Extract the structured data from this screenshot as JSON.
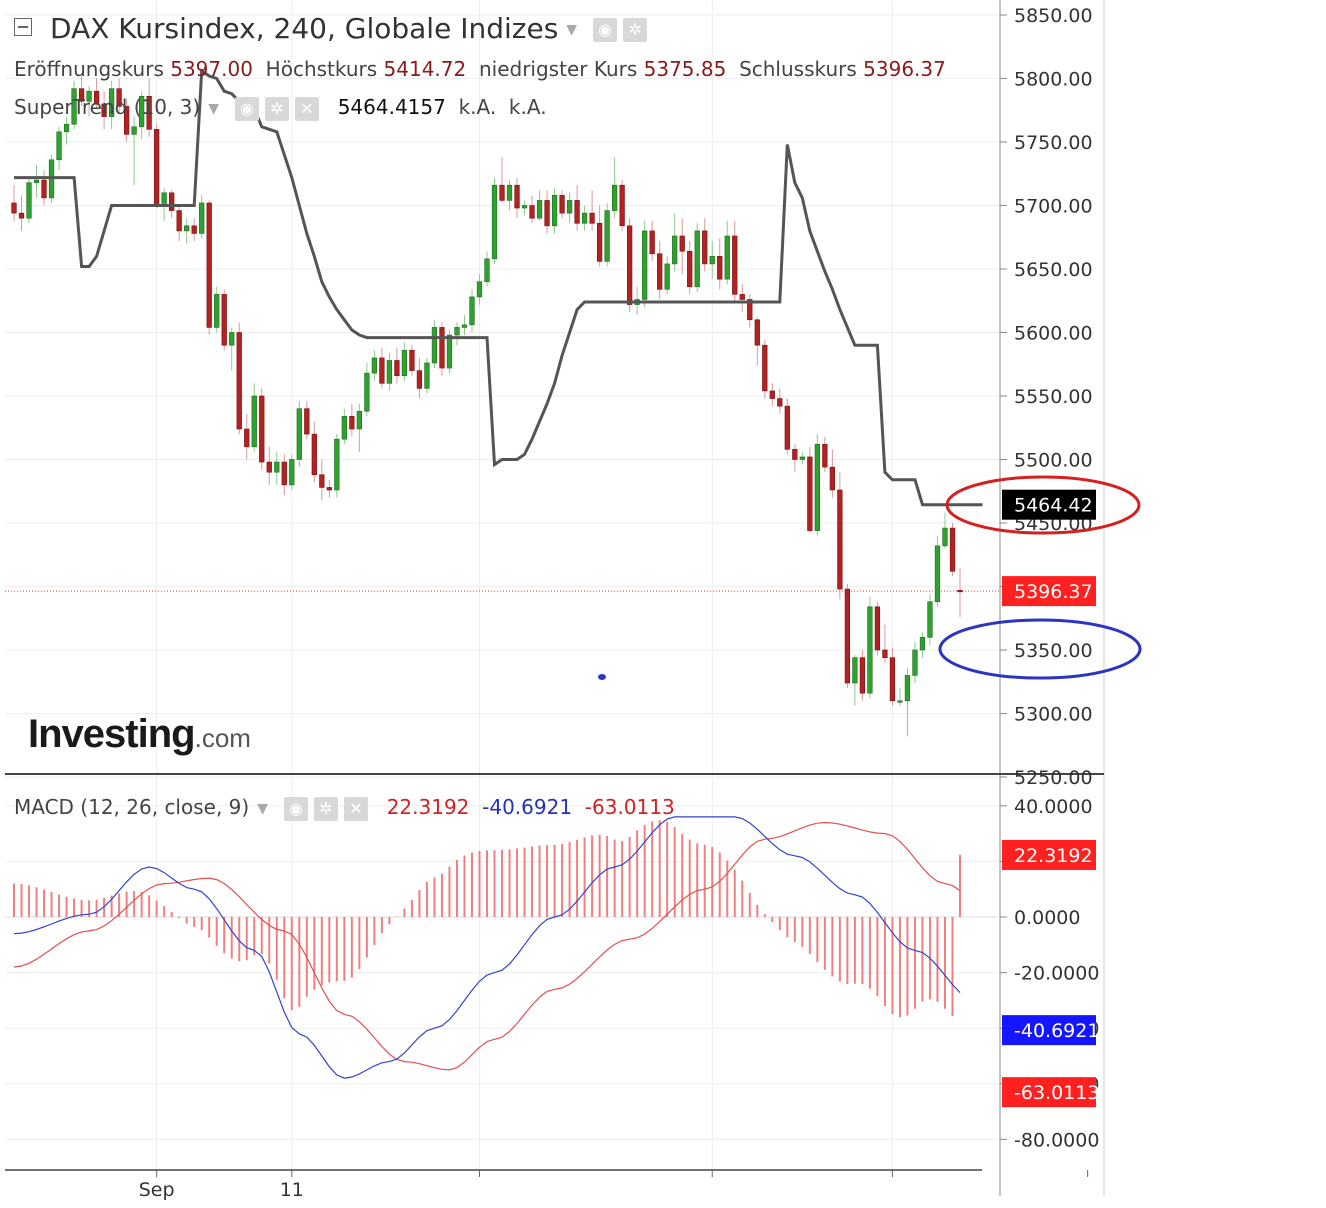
{
  "header": {
    "title": "DAX Kursindex, 240, Globale Indizes",
    "ohlc": [
      {
        "label": "Eröffnungskurs",
        "value": "5397.00"
      },
      {
        "label": "Höchstkurs",
        "value": "5414.72"
      },
      {
        "label": "niedrigster Kurs",
        "value": "5375.85"
      },
      {
        "label": "Schlusskurs",
        "value": "5396.37"
      }
    ],
    "supertrend_label": "SuperTrend (10, 3)",
    "supertrend_value": "5464.4157",
    "na1": "k.A.",
    "na2": "k.A.",
    "macd_label": "MACD (12, 26, close, 9)",
    "macd_values": [
      "22.3192",
      "-40.6921",
      "-63.0113"
    ]
  },
  "logo": {
    "main": "Investing",
    "suffix": ".com"
  },
  "colors": {
    "up": "#2ea12e",
    "down": "#b22222",
    "supertrend": "#555555",
    "macd": "#3344cc",
    "signal": "#e45050",
    "hist": "#f08080",
    "price_line": "#ff3333",
    "annot_red": "#d42020",
    "annot_blue": "#2a35c0"
  },
  "chart_data": [
    {
      "type": "candlestick",
      "title": "DAX Kursindex, 240, Globale Indizes",
      "ylim": [
        5250,
        5860
      ],
      "yticks": [
        "5850.00",
        "5800.00",
        "5750.00",
        "5700.00",
        "5650.00",
        "5600.00",
        "5550.00",
        "5500.00",
        "5450.00",
        "5400.00",
        "5350.00",
        "5300.00",
        "5250.00"
      ],
      "xticks": [
        {
          "label": "Sep",
          "i": 19
        },
        {
          "label": "11",
          "i": 37
        }
      ],
      "candles": [
        [
          5702,
          5716,
          5688,
          5694
        ],
        [
          5694,
          5708,
          5680,
          5690
        ],
        [
          5690,
          5722,
          5686,
          5718
        ],
        [
          5718,
          5732,
          5706,
          5720
        ],
        [
          5720,
          5728,
          5700,
          5706
        ],
        [
          5706,
          5740,
          5702,
          5736
        ],
        [
          5736,
          5762,
          5728,
          5758
        ],
        [
          5758,
          5770,
          5748,
          5764
        ],
        [
          5764,
          5798,
          5760,
          5792
        ],
        [
          5792,
          5802,
          5778,
          5782
        ],
        [
          5782,
          5794,
          5770,
          5790
        ],
        [
          5790,
          5800,
          5776,
          5780
        ],
        [
          5780,
          5790,
          5760,
          5770
        ],
        [
          5770,
          5798,
          5760,
          5792
        ],
        [
          5792,
          5800,
          5772,
          5778
        ],
        [
          5778,
          5784,
          5750,
          5756
        ],
        [
          5756,
          5770,
          5716,
          5762
        ],
        [
          5762,
          5790,
          5752,
          5786
        ],
        [
          5786,
          5800,
          5754,
          5760
        ],
        [
          5760,
          5764,
          5698,
          5700
        ],
        [
          5700,
          5714,
          5688,
          5710
        ],
        [
          5710,
          5712,
          5690,
          5696
        ],
        [
          5696,
          5700,
          5672,
          5680
        ],
        [
          5680,
          5690,
          5670,
          5684
        ],
        [
          5684,
          5690,
          5672,
          5678
        ],
        [
          5678,
          5708,
          5674,
          5702
        ],
        [
          5702,
          5704,
          5598,
          5604
        ],
        [
          5604,
          5636,
          5600,
          5630
        ],
        [
          5630,
          5634,
          5586,
          5590
        ],
        [
          5590,
          5604,
          5570,
          5600
        ],
        [
          5600,
          5608,
          5520,
          5524
        ],
        [
          5524,
          5536,
          5500,
          5510
        ],
        [
          5510,
          5560,
          5506,
          5550
        ],
        [
          5550,
          5556,
          5492,
          5498
        ],
        [
          5498,
          5510,
          5480,
          5490
        ],
        [
          5490,
          5506,
          5480,
          5498
        ],
        [
          5498,
          5504,
          5472,
          5480
        ],
        [
          5480,
          5504,
          5476,
          5500
        ],
        [
          5500,
          5546,
          5494,
          5540
        ],
        [
          5540,
          5546,
          5516,
          5520
        ],
        [
          5520,
          5530,
          5482,
          5488
        ],
        [
          5488,
          5500,
          5468,
          5478
        ],
        [
          5478,
          5484,
          5470,
          5476
        ],
        [
          5476,
          5520,
          5470,
          5516
        ],
        [
          5516,
          5540,
          5512,
          5534
        ],
        [
          5534,
          5544,
          5518,
          5524
        ],
        [
          5524,
          5544,
          5506,
          5538
        ],
        [
          5538,
          5576,
          5534,
          5568
        ],
        [
          5568,
          5586,
          5562,
          5580
        ],
        [
          5580,
          5588,
          5556,
          5560
        ],
        [
          5560,
          5584,
          5554,
          5578
        ],
        [
          5578,
          5588,
          5560,
          5566
        ],
        [
          5566,
          5592,
          5562,
          5586
        ],
        [
          5586,
          5590,
          5566,
          5570
        ],
        [
          5570,
          5580,
          5548,
          5556
        ],
        [
          5556,
          5580,
          5552,
          5576
        ],
        [
          5576,
          5610,
          5572,
          5604
        ],
        [
          5604,
          5608,
          5566,
          5572
        ],
        [
          5572,
          5602,
          5568,
          5598
        ],
        [
          5598,
          5608,
          5590,
          5604
        ],
        [
          5604,
          5614,
          5598,
          5606
        ],
        [
          5606,
          5634,
          5600,
          5628
        ],
        [
          5628,
          5646,
          5622,
          5640
        ],
        [
          5640,
          5664,
          5636,
          5658
        ],
        [
          5658,
          5722,
          5654,
          5716
        ],
        [
          5716,
          5738,
          5702,
          5704
        ],
        [
          5704,
          5720,
          5696,
          5716
        ],
        [
          5716,
          5722,
          5690,
          5698
        ],
        [
          5698,
          5704,
          5692,
          5700
        ],
        [
          5700,
          5708,
          5686,
          5690
        ],
        [
          5690,
          5712,
          5688,
          5704
        ],
        [
          5704,
          5712,
          5678,
          5684
        ],
        [
          5684,
          5714,
          5678,
          5708
        ],
        [
          5708,
          5712,
          5690,
          5694
        ],
        [
          5694,
          5710,
          5686,
          5704
        ],
        [
          5704,
          5716,
          5680,
          5686
        ],
        [
          5686,
          5700,
          5680,
          5694
        ],
        [
          5694,
          5712,
          5680,
          5686
        ],
        [
          5686,
          5700,
          5652,
          5656
        ],
        [
          5656,
          5702,
          5652,
          5696
        ],
        [
          5696,
          5738,
          5690,
          5716
        ],
        [
          5716,
          5720,
          5680,
          5684
        ],
        [
          5684,
          5690,
          5616,
          5622
        ],
        [
          5622,
          5636,
          5614,
          5626
        ],
        [
          5626,
          5688,
          5620,
          5680
        ],
        [
          5680,
          5688,
          5656,
          5662
        ],
        [
          5662,
          5672,
          5626,
          5634
        ],
        [
          5634,
          5660,
          5630,
          5654
        ],
        [
          5654,
          5694,
          5648,
          5676
        ],
        [
          5676,
          5690,
          5646,
          5664
        ],
        [
          5664,
          5672,
          5630,
          5636
        ],
        [
          5636,
          5686,
          5632,
          5680
        ],
        [
          5680,
          5690,
          5648,
          5654
        ],
        [
          5654,
          5672,
          5642,
          5660
        ],
        [
          5660,
          5674,
          5634,
          5642
        ],
        [
          5642,
          5688,
          5638,
          5676
        ],
        [
          5676,
          5688,
          5624,
          5630
        ],
        [
          5630,
          5638,
          5616,
          5626
        ],
        [
          5626,
          5630,
          5604,
          5610
        ],
        [
          5610,
          5612,
          5574,
          5590
        ],
        [
          5590,
          5594,
          5548,
          5554
        ],
        [
          5554,
          5560,
          5542,
          5548
        ],
        [
          5548,
          5556,
          5536,
          5542
        ],
        [
          5542,
          5548,
          5504,
          5508
        ],
        [
          5508,
          5512,
          5490,
          5500
        ],
        [
          5500,
          5506,
          5496,
          5502
        ],
        [
          5502,
          5510,
          5442,
          5444
        ],
        [
          5444,
          5520,
          5440,
          5512
        ],
        [
          5512,
          5518,
          5490,
          5494
        ],
        [
          5494,
          5508,
          5470,
          5476
        ],
        [
          5476,
          5490,
          5390,
          5398
        ],
        [
          5398,
          5402,
          5320,
          5324
        ],
        [
          5324,
          5346,
          5306,
          5344
        ],
        [
          5344,
          5350,
          5310,
          5316
        ],
        [
          5316,
          5392,
          5312,
          5384
        ],
        [
          5384,
          5388,
          5346,
          5350
        ],
        [
          5350,
          5370,
          5340,
          5344
        ],
        [
          5344,
          5352,
          5306,
          5310
        ],
        [
          5310,
          5320,
          5306,
          5310
        ],
        [
          5310,
          5336,
          5282,
          5330
        ],
        [
          5330,
          5356,
          5324,
          5350
        ],
        [
          5350,
          5364,
          5344,
          5360
        ],
        [
          5360,
          5394,
          5354,
          5388
        ],
        [
          5388,
          5440,
          5384,
          5432
        ],
        [
          5432,
          5458,
          5430,
          5446
        ],
        [
          5446,
          5450,
          5408,
          5412
        ],
        [
          5397,
          5414.72,
          5375.85,
          5396.37
        ]
      ],
      "supertrend": [
        5722,
        5722,
        5722,
        5722,
        5722,
        5722,
        5722,
        5722,
        5722,
        5652,
        5652,
        5660,
        5680,
        5700,
        5700,
        5700,
        5700,
        5700,
        5700,
        5700,
        5700,
        5700,
        5700,
        5700,
        5700,
        5806,
        5802,
        5800,
        5790,
        5788,
        5782,
        5778,
        5776,
        5762,
        5760,
        5758,
        5740,
        5722,
        5700,
        5678,
        5660,
        5640,
        5628,
        5618,
        5610,
        5602,
        5598,
        5596,
        5596,
        5596,
        5596,
        5596,
        5596,
        5596,
        5596,
        5596,
        5596,
        5596,
        5596,
        5596,
        5596,
        5596,
        5596,
        5596,
        5496,
        5500,
        5500,
        5500,
        5504,
        5516,
        5530,
        5544,
        5560,
        5582,
        5600,
        5618,
        5624,
        5624,
        5624,
        5624,
        5624,
        5624,
        5624,
        5624,
        5624,
        5624,
        5624,
        5624,
        5624,
        5624,
        5624,
        5624,
        5624,
        5624,
        5624,
        5624,
        5624,
        5624,
        5624,
        5624,
        5624,
        5624,
        5624,
        5748,
        5718,
        5706,
        5680,
        5664,
        5648,
        5634,
        5618,
        5604,
        5590,
        5590,
        5590,
        5590,
        5490,
        5484,
        5484,
        5484,
        5484,
        5464.42,
        5464.42,
        5464.42,
        5464.42,
        5464.42,
        5464.42,
        5464.42,
        5464.42,
        5464.42
      ],
      "last_price": "5396.37",
      "supertrend_last": "5464.42"
    },
    {
      "type": "macd",
      "title": "MACD (12, 26, close, 9)",
      "ylim": [
        -88,
        44
      ],
      "yticks": [
        "40.0000",
        "20.0000",
        "0.0000",
        "-20.0000",
        "-40.0000",
        "-60.0000",
        "-80.0000"
      ],
      "anchors_macd": [
        [
          0,
          -6
        ],
        [
          10,
          1
        ],
        [
          18,
          18
        ],
        [
          24,
          10
        ],
        [
          32,
          -12
        ],
        [
          38,
          -42
        ],
        [
          44,
          -58
        ],
        [
          50,
          -52
        ],
        [
          56,
          -40
        ],
        [
          64,
          -20
        ],
        [
          72,
          0
        ],
        [
          80,
          18
        ],
        [
          88,
          36
        ],
        [
          96,
          36
        ],
        [
          104,
          22
        ],
        [
          112,
          8
        ],
        [
          120,
          -12
        ],
        [
          128,
          -30
        ],
        [
          134,
          -48
        ],
        [
          140,
          -62
        ],
        [
          150,
          -72
        ],
        [
          156,
          -79
        ],
        [
          160,
          -76
        ],
        [
          166,
          -52
        ],
        [
          172,
          -40.6921
        ]
      ],
      "anchors_signal": [
        [
          0,
          -18
        ],
        [
          10,
          -5
        ],
        [
          20,
          12
        ],
        [
          26,
          14
        ],
        [
          36,
          -5
        ],
        [
          44,
          -35
        ],
        [
          52,
          -52
        ],
        [
          58,
          -55
        ],
        [
          64,
          -44
        ],
        [
          72,
          -26
        ],
        [
          82,
          -8
        ],
        [
          92,
          10
        ],
        [
          100,
          28
        ],
        [
          108,
          34
        ],
        [
          116,
          30
        ],
        [
          124,
          12
        ],
        [
          132,
          -4
        ],
        [
          140,
          -24
        ],
        [
          148,
          -44
        ],
        [
          156,
          -64
        ],
        [
          162,
          -76
        ],
        [
          166,
          -79
        ],
        [
          172,
          -63.0113
        ]
      ],
      "histogram_last": "22.3192",
      "macd_last": "-40.6921",
      "signal_last": "-63.0113"
    }
  ]
}
